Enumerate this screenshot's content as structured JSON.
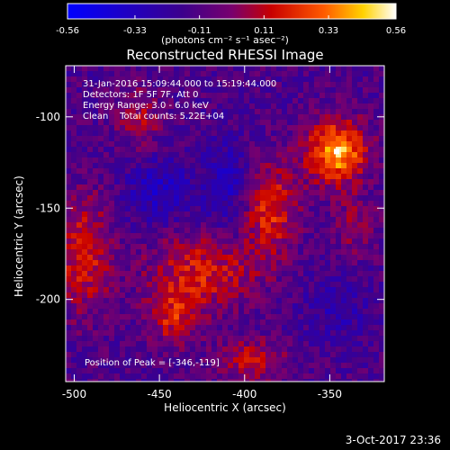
{
  "chart_data": {
    "type": "heatmap",
    "title": "Reconstructed RHESSI Image",
    "xlabel": "Heliocentric X (arcsec)",
    "ylabel": "Heliocentric Y (arcsec)",
    "colorbar": {
      "label": "(photons cm⁻² s⁻¹ asec⁻²)",
      "ticks": [
        "-0.56",
        "-0.33",
        "-0.11",
        "0.11",
        "0.33",
        "0.56"
      ],
      "range": [
        -0.56,
        0.56
      ]
    },
    "x_range": [
      -505,
      -318
    ],
    "y_range": [
      -245,
      -72
    ],
    "x_ticks": [
      -500,
      -450,
      -400,
      -350
    ],
    "x_tick_labels": [
      "-500",
      "-450",
      "-400",
      "-350"
    ],
    "y_ticks": [
      -100,
      -150,
      -200
    ],
    "y_tick_labels": [
      "-100",
      "-150",
      "-200"
    ],
    "annotations": [
      "31-Jan-2016 15:09:44.000 to 15:19:44.000",
      "Detectors: 1F 5F 7F, Att 0",
      "Energy Range: 3.0 - 6.0 keV",
      "Clean    Total counts: 5.22E+04"
    ],
    "peak_label": "Position of Peak = [-346,-119]",
    "peak": [
      -346,
      -119
    ],
    "sources": [
      {
        "x": -346,
        "y": -119,
        "sx": 12,
        "sy": 12,
        "amp": 0.56
      },
      {
        "x": -385,
        "y": -150,
        "sx": 11,
        "sy": 18,
        "amp": 0.33
      },
      {
        "x": -425,
        "y": -185,
        "sx": 22,
        "sy": 14,
        "amp": 0.3
      },
      {
        "x": -495,
        "y": -175,
        "sx": 12,
        "sy": 22,
        "amp": 0.3
      },
      {
        "x": -462,
        "y": -100,
        "sx": 10,
        "sy": 12,
        "amp": 0.2
      },
      {
        "x": -442,
        "y": -210,
        "sx": 10,
        "sy": 10,
        "amp": 0.28
      },
      {
        "x": -395,
        "y": -233,
        "sx": 14,
        "sy": 8,
        "amp": 0.25
      },
      {
        "x": -335,
        "y": -160,
        "sx": 10,
        "sy": 12,
        "amp": 0.15
      },
      {
        "x": -450,
        "y": -140,
        "sx": 14,
        "sy": 12,
        "amp": -0.2
      },
      {
        "x": -410,
        "y": -138,
        "sx": 10,
        "sy": 18,
        "amp": -0.18
      },
      {
        "x": -345,
        "y": -205,
        "sx": 16,
        "sy": 14,
        "amp": -0.12
      }
    ]
  },
  "footer": {
    "timestamp": "3-Oct-2017 23:36"
  }
}
